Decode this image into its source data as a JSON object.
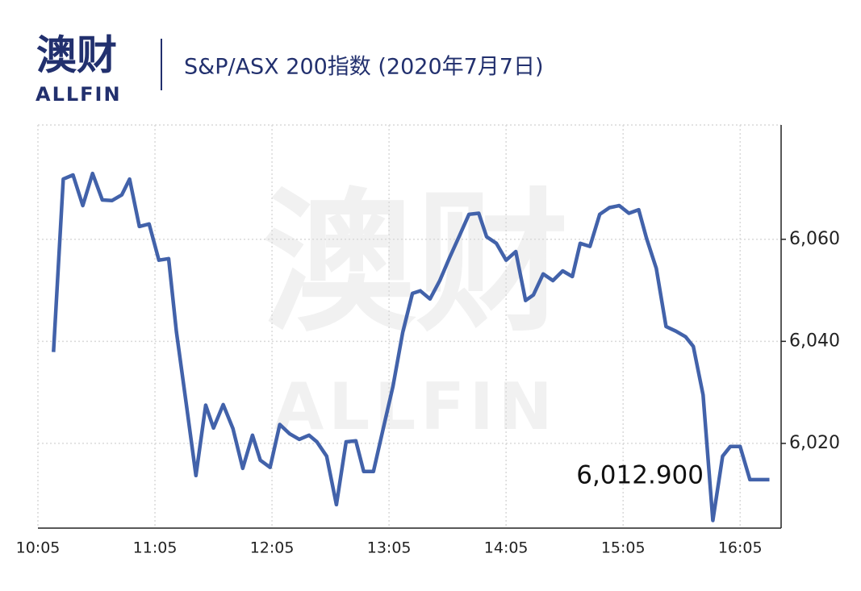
{
  "header": {
    "logo": "澳财",
    "logo_sub": "ALLFIN"
  },
  "chart_data": {
    "type": "line",
    "title": "S&P/ASX 200指数 (2020年7月7日)",
    "watermark": "澳财",
    "watermark_sub": "ALLFIN",
    "x": [
      "10:13",
      "10:18",
      "10:23",
      "10:28",
      "10:33",
      "10:38",
      "10:43",
      "10:48",
      "10:52",
      "10:57",
      "11:02",
      "11:07",
      "11:12",
      "11:16",
      "11:21",
      "11:26",
      "11:31",
      "11:35",
      "11:40",
      "11:45",
      "11:50",
      "11:55",
      "11:59",
      "12:04",
      "12:09",
      "12:14",
      "12:19",
      "12:24",
      "12:28",
      "12:33",
      "12:38",
      "12:43",
      "12:48",
      "12:52",
      "12:57",
      "13:02",
      "13:07",
      "13:12",
      "13:17",
      "13:21",
      "13:26",
      "13:31",
      "13:36",
      "13:41",
      "13:46",
      "13:51",
      "13:55",
      "14:00",
      "14:05",
      "14:10",
      "14:15",
      "14:19",
      "14:24",
      "14:29",
      "14:34",
      "14:39",
      "14:43",
      "14:48",
      "14:53",
      "14:58",
      "15:03",
      "15:08",
      "15:13",
      "15:17",
      "15:22",
      "15:27",
      "15:32",
      "15:37",
      "15:41",
      "15:46",
      "15:51",
      "15:56",
      "16:00",
      "16:05",
      "16:10",
      "16:15",
      "16:20"
    ],
    "series": [
      {
        "name": "S&P/ASX 200",
        "color": "#4262aa",
        "values": [
          6037.9,
          6071.8,
          6072.6,
          6066.6,
          6072.9,
          6067.7,
          6067.6,
          6068.7,
          6071.8,
          6062.5,
          6063.0,
          6055.9,
          6056.2,
          6041.9,
          6027.9,
          6013.7,
          6027.5,
          6023.0,
          6027.6,
          6022.9,
          6015.1,
          6021.6,
          6016.7,
          6015.3,
          6023.7,
          6021.9,
          6020.8,
          6021.6,
          6020.3,
          6017.5,
          6008.0,
          6020.3,
          6020.5,
          6014.5,
          6014.5,
          6022.9,
          6031.2,
          6041.7,
          6049.4,
          6049.9,
          6048.3,
          6051.9,
          6056.4,
          6060.6,
          6064.9,
          6065.1,
          6060.5,
          6059.2,
          6055.9,
          6057.6,
          6048.0,
          6049.1,
          6053.2,
          6051.9,
          6053.8,
          6052.7,
          6059.2,
          6058.6,
          6064.9,
          6066.2,
          6066.6,
          6065.1,
          6065.8,
          6060.2,
          6054.3,
          6042.9,
          6042.0,
          6040.9,
          6039.0,
          6029.5,
          6004.9,
          6017.5,
          6019.4,
          6019.4,
          6012.9,
          6012.9,
          6012.9
        ],
        "last_label": "6,012.900"
      }
    ],
    "xlim": [
      "10:05",
      "16:26"
    ],
    "xticks": [
      "10:05",
      "11:05",
      "12:05",
      "13:05",
      "14:05",
      "15:05",
      "16:05"
    ],
    "ylim": [
      6003.4,
      6082.4
    ],
    "yticks": [
      {
        "value": 6020,
        "label": "6,020"
      },
      {
        "value": 6040,
        "label": "6,040"
      },
      {
        "value": 6060,
        "label": "6,060"
      }
    ],
    "grid": true
  }
}
